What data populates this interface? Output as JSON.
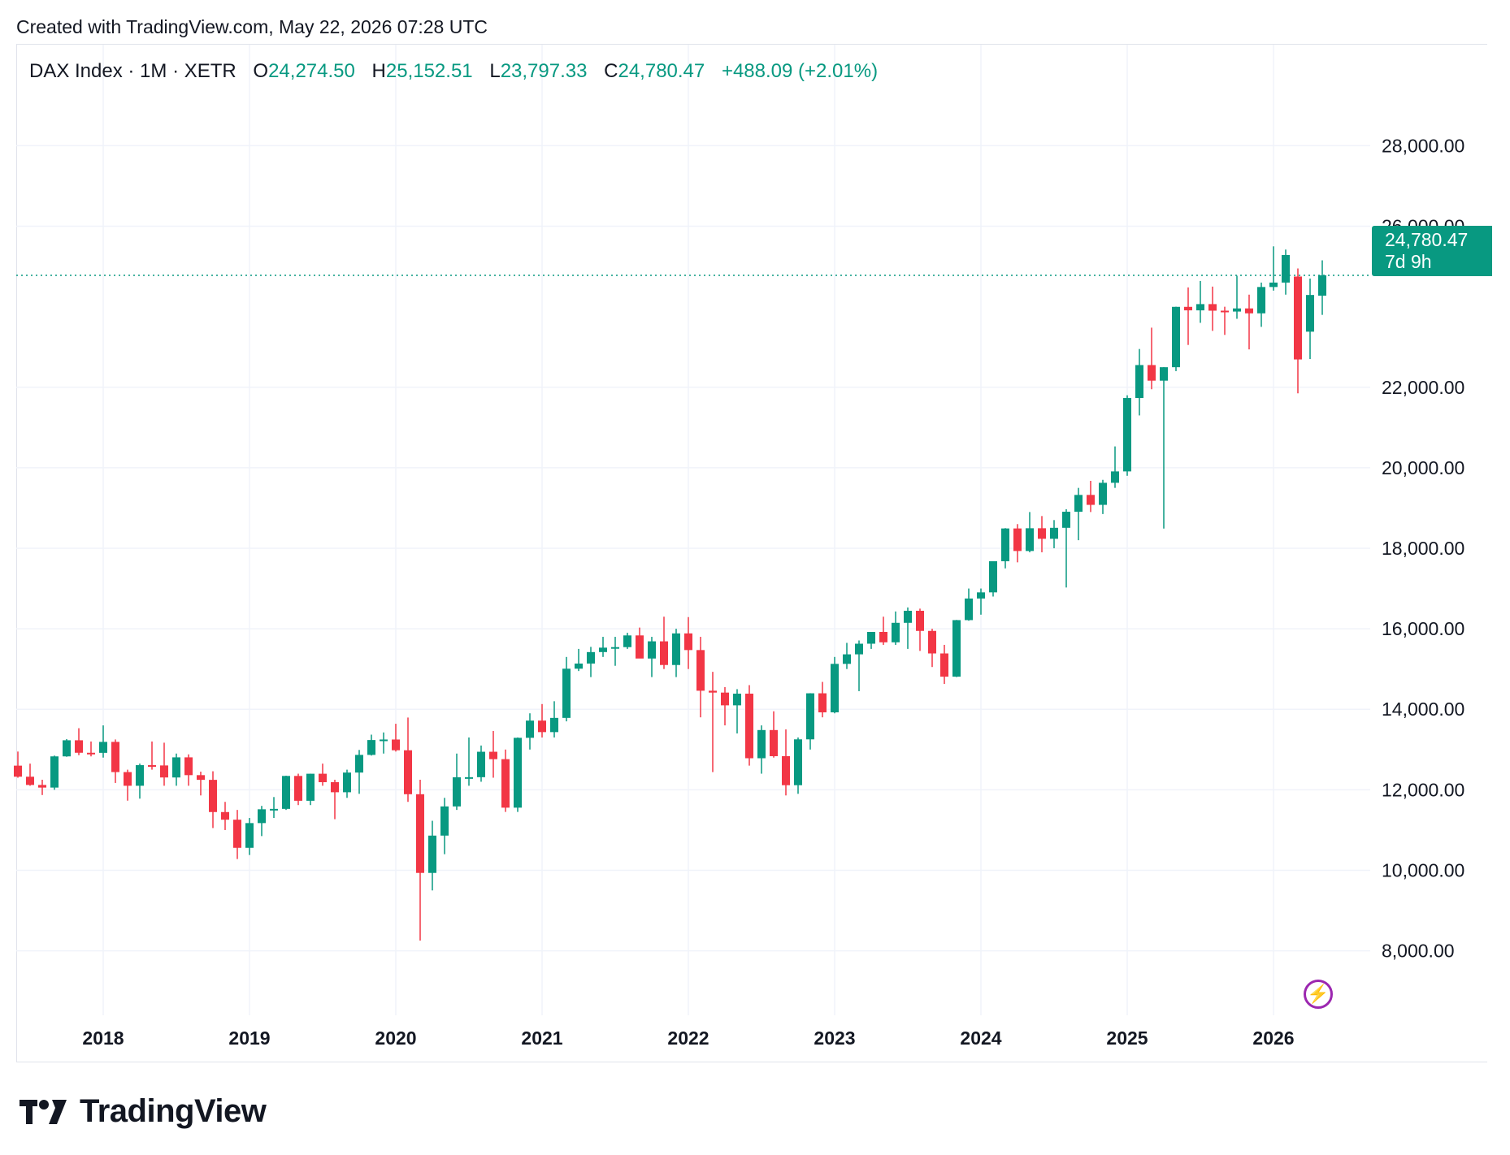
{
  "header": {
    "credit": "Created with TradingView.com, May 22, 2026 07:28 UTC"
  },
  "legend": {
    "symbol": "DAX Index · 1M · XETR",
    "open_label": "O",
    "open": "24,274.50",
    "high_label": "H",
    "high": "25,152.51",
    "low_label": "L",
    "low": "23,797.33",
    "close_label": "C",
    "close": "24,780.47",
    "change": "+488.09 (+2.01%)"
  },
  "price_tag": {
    "price": "24,780.47",
    "countdown": "7d 9h"
  },
  "footer": {
    "brand": "TradingView"
  },
  "colors": {
    "up": "#089981",
    "down": "#f23645",
    "grid": "#f0f3fa",
    "text": "#131722",
    "accent_purple": "#9c27b0"
  },
  "icons": {
    "logo": "tradingview-logo-icon",
    "badge": "lightning-icon"
  },
  "chart_data": {
    "type": "candlestick",
    "interval": "1M",
    "y_ticks": [
      "8,000.00",
      "10,000.00",
      "12,000.00",
      "14,000.00",
      "16,000.00",
      "18,000.00",
      "20,000.00",
      "22,000.00",
      "26,000.00",
      "28,000.00"
    ],
    "x_ticks": [
      "2018",
      "2019",
      "2020",
      "2021",
      "2022",
      "2023",
      "2024",
      "2025",
      "2026"
    ],
    "ylim": [
      6600,
      29400
    ],
    "last_price": 24780.47,
    "grid": true,
    "candles": [
      {
        "t": "2017-06",
        "o": 12600,
        "h": 12950,
        "l": 12300,
        "c": 12325
      },
      {
        "t": "2017-07",
        "o": 12325,
        "h": 12650,
        "l": 12100,
        "c": 12120
      },
      {
        "t": "2017-08",
        "o": 12120,
        "h": 12250,
        "l": 11870,
        "c": 12055
      },
      {
        "t": "2017-09",
        "o": 12055,
        "h": 12850,
        "l": 12000,
        "c": 12830
      },
      {
        "t": "2017-10",
        "o": 12830,
        "h": 13260,
        "l": 12820,
        "c": 13230
      },
      {
        "t": "2017-11",
        "o": 13230,
        "h": 13530,
        "l": 12860,
        "c": 12920
      },
      {
        "t": "2017-12",
        "o": 12920,
        "h": 13200,
        "l": 12830,
        "c": 12918
      },
      {
        "t": "2018-01",
        "o": 12918,
        "h": 13600,
        "l": 12800,
        "c": 13190
      },
      {
        "t": "2018-02",
        "o": 13190,
        "h": 13250,
        "l": 12170,
        "c": 12440
      },
      {
        "t": "2018-03",
        "o": 12440,
        "h": 12500,
        "l": 11730,
        "c": 12100
      },
      {
        "t": "2018-04",
        "o": 12100,
        "h": 12650,
        "l": 11780,
        "c": 12612
      },
      {
        "t": "2018-05",
        "o": 12612,
        "h": 13200,
        "l": 12500,
        "c": 12605
      },
      {
        "t": "2018-06",
        "o": 12605,
        "h": 13170,
        "l": 12100,
        "c": 12306
      },
      {
        "t": "2018-07",
        "o": 12306,
        "h": 12900,
        "l": 12100,
        "c": 12806
      },
      {
        "t": "2018-08",
        "o": 12806,
        "h": 12880,
        "l": 12100,
        "c": 12364
      },
      {
        "t": "2018-09",
        "o": 12364,
        "h": 12450,
        "l": 11860,
        "c": 12247
      },
      {
        "t": "2018-10",
        "o": 12247,
        "h": 12460,
        "l": 11050,
        "c": 11447
      },
      {
        "t": "2018-11",
        "o": 11447,
        "h": 11700,
        "l": 11000,
        "c": 11257
      },
      {
        "t": "2018-12",
        "o": 11257,
        "h": 11500,
        "l": 10280,
        "c": 10559
      },
      {
        "t": "2019-01",
        "o": 10559,
        "h": 11300,
        "l": 10380,
        "c": 11173
      },
      {
        "t": "2019-02",
        "o": 11173,
        "h": 11600,
        "l": 10850,
        "c": 11516
      },
      {
        "t": "2019-03",
        "o": 11516,
        "h": 11820,
        "l": 11300,
        "c": 11526
      },
      {
        "t": "2019-04",
        "o": 11526,
        "h": 12350,
        "l": 11500,
        "c": 12344
      },
      {
        "t": "2019-05",
        "o": 12344,
        "h": 12400,
        "l": 11620,
        "c": 11727
      },
      {
        "t": "2019-06",
        "o": 11727,
        "h": 12400,
        "l": 11620,
        "c": 12399
      },
      {
        "t": "2019-07",
        "o": 12399,
        "h": 12650,
        "l": 12100,
        "c": 12189
      },
      {
        "t": "2019-08",
        "o": 12189,
        "h": 12250,
        "l": 11270,
        "c": 11939
      },
      {
        "t": "2019-09",
        "o": 11939,
        "h": 12500,
        "l": 11800,
        "c": 12428
      },
      {
        "t": "2019-10",
        "o": 12428,
        "h": 12990,
        "l": 11900,
        "c": 12867
      },
      {
        "t": "2019-11",
        "o": 12867,
        "h": 13370,
        "l": 12850,
        "c": 13236
      },
      {
        "t": "2019-12",
        "o": 13236,
        "h": 13425,
        "l": 12900,
        "c": 13249
      },
      {
        "t": "2020-01",
        "o": 13249,
        "h": 13640,
        "l": 12950,
        "c": 12982
      },
      {
        "t": "2020-02",
        "o": 12982,
        "h": 13795,
        "l": 11700,
        "c": 11890
      },
      {
        "t": "2020-03",
        "o": 11890,
        "h": 12250,
        "l": 8255,
        "c": 9935
      },
      {
        "t": "2020-04",
        "o": 9935,
        "h": 11230,
        "l": 9500,
        "c": 10862
      },
      {
        "t": "2020-05",
        "o": 10862,
        "h": 11800,
        "l": 10400,
        "c": 11587
      },
      {
        "t": "2020-06",
        "o": 11587,
        "h": 12900,
        "l": 11500,
        "c": 12311
      },
      {
        "t": "2020-07",
        "o": 12311,
        "h": 13300,
        "l": 12100,
        "c": 12313
      },
      {
        "t": "2020-08",
        "o": 12313,
        "h": 13100,
        "l": 12200,
        "c": 12945
      },
      {
        "t": "2020-09",
        "o": 12945,
        "h": 13460,
        "l": 12300,
        "c": 12761
      },
      {
        "t": "2020-10",
        "o": 12761,
        "h": 13000,
        "l": 11450,
        "c": 11556
      },
      {
        "t": "2020-11",
        "o": 11556,
        "h": 13300,
        "l": 11450,
        "c": 13291
      },
      {
        "t": "2020-12",
        "o": 13291,
        "h": 13900,
        "l": 13000,
        "c": 13719
      },
      {
        "t": "2021-01",
        "o": 13719,
        "h": 14130,
        "l": 13300,
        "c": 13433
      },
      {
        "t": "2021-02",
        "o": 13433,
        "h": 14200,
        "l": 13300,
        "c": 13786
      },
      {
        "t": "2021-03",
        "o": 13786,
        "h": 15300,
        "l": 13700,
        "c": 15008
      },
      {
        "t": "2021-04",
        "o": 15008,
        "h": 15500,
        "l": 14950,
        "c": 15136
      },
      {
        "t": "2021-05",
        "o": 15136,
        "h": 15550,
        "l": 14800,
        "c": 15421
      },
      {
        "t": "2021-06",
        "o": 15421,
        "h": 15800,
        "l": 15300,
        "c": 15531
      },
      {
        "t": "2021-07",
        "o": 15531,
        "h": 15800,
        "l": 15080,
        "c": 15544
      },
      {
        "t": "2021-08",
        "o": 15544,
        "h": 15900,
        "l": 15500,
        "c": 15835
      },
      {
        "t": "2021-09",
        "o": 15835,
        "h": 16030,
        "l": 15300,
        "c": 15261
      },
      {
        "t": "2021-10",
        "o": 15261,
        "h": 15800,
        "l": 14800,
        "c": 15688
      },
      {
        "t": "2021-11",
        "o": 15688,
        "h": 16300,
        "l": 15000,
        "c": 15100
      },
      {
        "t": "2021-12",
        "o": 15100,
        "h": 16000,
        "l": 14800,
        "c": 15885
      },
      {
        "t": "2022-01",
        "o": 15885,
        "h": 16290,
        "l": 15000,
        "c": 15471
      },
      {
        "t": "2022-02",
        "o": 15471,
        "h": 15800,
        "l": 13800,
        "c": 14461
      },
      {
        "t": "2022-03",
        "o": 14461,
        "h": 14930,
        "l": 12440,
        "c": 14415
      },
      {
        "t": "2022-04",
        "o": 14415,
        "h": 14550,
        "l": 13600,
        "c": 14098
      },
      {
        "t": "2022-05",
        "o": 14098,
        "h": 14500,
        "l": 13400,
        "c": 14388
      },
      {
        "t": "2022-06",
        "o": 14388,
        "h": 14600,
        "l": 12600,
        "c": 12784
      },
      {
        "t": "2022-07",
        "o": 12784,
        "h": 13600,
        "l": 12400,
        "c": 13484
      },
      {
        "t": "2022-08",
        "o": 13484,
        "h": 13950,
        "l": 12800,
        "c": 12835
      },
      {
        "t": "2022-09",
        "o": 12835,
        "h": 13500,
        "l": 11860,
        "c": 12114
      },
      {
        "t": "2022-10",
        "o": 12114,
        "h": 13300,
        "l": 11900,
        "c": 13253
      },
      {
        "t": "2022-11",
        "o": 13253,
        "h": 14400,
        "l": 13000,
        "c": 14397
      },
      {
        "t": "2022-12",
        "o": 14397,
        "h": 14680,
        "l": 13800,
        "c": 13924
      },
      {
        "t": "2023-01",
        "o": 13924,
        "h": 15300,
        "l": 13900,
        "c": 15128
      },
      {
        "t": "2023-02",
        "o": 15128,
        "h": 15650,
        "l": 15000,
        "c": 15365
      },
      {
        "t": "2023-03",
        "o": 15365,
        "h": 15710,
        "l": 14450,
        "c": 15629
      },
      {
        "t": "2023-04",
        "o": 15629,
        "h": 15900,
        "l": 15500,
        "c": 15922
      },
      {
        "t": "2023-05",
        "o": 15922,
        "h": 16300,
        "l": 15600,
        "c": 15664
      },
      {
        "t": "2023-06",
        "o": 15664,
        "h": 16430,
        "l": 15600,
        "c": 16148
      },
      {
        "t": "2023-07",
        "o": 16148,
        "h": 16530,
        "l": 15500,
        "c": 16447
      },
      {
        "t": "2023-08",
        "o": 16447,
        "h": 16500,
        "l": 15450,
        "c": 15947
      },
      {
        "t": "2023-09",
        "o": 15947,
        "h": 16000,
        "l": 15050,
        "c": 15387
      },
      {
        "t": "2023-10",
        "o": 15387,
        "h": 15600,
        "l": 14630,
        "c": 14810
      },
      {
        "t": "2023-11",
        "o": 14810,
        "h": 16220,
        "l": 14800,
        "c": 16215
      },
      {
        "t": "2023-12",
        "o": 16215,
        "h": 17000,
        "l": 16200,
        "c": 16752
      },
      {
        "t": "2024-01",
        "o": 16752,
        "h": 17000,
        "l": 16350,
        "c": 16904
      },
      {
        "t": "2024-02",
        "o": 16904,
        "h": 17500,
        "l": 16800,
        "c": 17678
      },
      {
        "t": "2024-03",
        "o": 17678,
        "h": 18500,
        "l": 17500,
        "c": 18492
      },
      {
        "t": "2024-04",
        "o": 18492,
        "h": 18600,
        "l": 17650,
        "c": 17932
      },
      {
        "t": "2024-05",
        "o": 17932,
        "h": 18900,
        "l": 17900,
        "c": 18497
      },
      {
        "t": "2024-06",
        "o": 18497,
        "h": 18800,
        "l": 17900,
        "c": 18235
      },
      {
        "t": "2024-07",
        "o": 18235,
        "h": 18700,
        "l": 18000,
        "c": 18508
      },
      {
        "t": "2024-08",
        "o": 18508,
        "h": 18970,
        "l": 17025,
        "c": 18907
      },
      {
        "t": "2024-09",
        "o": 18907,
        "h": 19500,
        "l": 18200,
        "c": 19325
      },
      {
        "t": "2024-10",
        "o": 19325,
        "h": 19675,
        "l": 18900,
        "c": 19078
      },
      {
        "t": "2024-11",
        "o": 19078,
        "h": 19700,
        "l": 18850,
        "c": 19626
      },
      {
        "t": "2024-12",
        "o": 19626,
        "h": 20530,
        "l": 19500,
        "c": 19909
      },
      {
        "t": "2025-01",
        "o": 19909,
        "h": 21800,
        "l": 19800,
        "c": 21732
      },
      {
        "t": "2025-02",
        "o": 21732,
        "h": 22950,
        "l": 21300,
        "c": 22551
      },
      {
        "t": "2025-03",
        "o": 22551,
        "h": 23480,
        "l": 21950,
        "c": 22163
      },
      {
        "t": "2025-04",
        "o": 22163,
        "h": 22500,
        "l": 18490,
        "c": 22497
      },
      {
        "t": "2025-05",
        "o": 22497,
        "h": 24000,
        "l": 22400,
        "c": 23997
      },
      {
        "t": "2025-06",
        "o": 23997,
        "h": 24480,
        "l": 23050,
        "c": 23910
      },
      {
        "t": "2025-07",
        "o": 23910,
        "h": 24640,
        "l": 23600,
        "c": 24065
      },
      {
        "t": "2025-08",
        "o": 24065,
        "h": 24500,
        "l": 23400,
        "c": 23902
      },
      {
        "t": "2025-09",
        "o": 23902,
        "h": 24000,
        "l": 23300,
        "c": 23880
      },
      {
        "t": "2025-10",
        "o": 23880,
        "h": 24771,
        "l": 23700,
        "c": 23958
      },
      {
        "t": "2025-11",
        "o": 23958,
        "h": 24300,
        "l": 22940,
        "c": 23836
      },
      {
        "t": "2025-12",
        "o": 23836,
        "h": 24600,
        "l": 23500,
        "c": 24490
      },
      {
        "t": "2026-01",
        "o": 24490,
        "h": 25500,
        "l": 24400,
        "c": 24600
      },
      {
        "t": "2026-02",
        "o": 24600,
        "h": 25420,
        "l": 24300,
        "c": 25284
      },
      {
        "t": "2026-03",
        "o": 24750,
        "h": 24950,
        "l": 21850,
        "c": 22690
      },
      {
        "t": "2026-04",
        "o": 23380,
        "h": 24700,
        "l": 22700,
        "c": 24292
      },
      {
        "t": "2026-05",
        "o": 24274.5,
        "h": 25152.51,
        "l": 23797.33,
        "c": 24780.47
      }
    ]
  }
}
